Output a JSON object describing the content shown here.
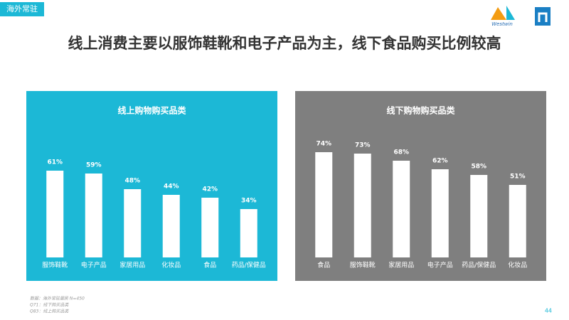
{
  "header": {
    "tag": "海外常驻",
    "brand": "Westwin"
  },
  "title": "线上消费主要以服饰鞋靴和电子产品为主，线下食品购买比例较高",
  "chart_data": [
    {
      "type": "bar",
      "title": "线上购物购买品类",
      "color": "#ffffff",
      "background": "#1cb8d6",
      "categories": [
        "服饰鞋靴",
        "电子产品",
        "家居用品",
        "化妆品",
        "食品",
        "药品/保健品"
      ],
      "values": [
        61,
        59,
        48,
        44,
        42,
        34
      ],
      "value_labels": [
        "61%",
        "59%",
        "48%",
        "44%",
        "42%",
        "34%"
      ]
    },
    {
      "type": "bar",
      "title": "线下购物购买品类",
      "color": "#ffffff",
      "background": "#7f7f7f",
      "categories": [
        "食品",
        "服饰鞋靴",
        "家居用品",
        "电子产品",
        "药品/保健品",
        "化妆品"
      ],
      "values": [
        74,
        73,
        68,
        62,
        58,
        51
      ],
      "value_labels": [
        "74%",
        "73%",
        "68%",
        "62%",
        "58%",
        "51%"
      ]
    }
  ],
  "notes": [
    "数据：海外常驻居民 N=450",
    "Q71：线下购买品类",
    "Q83：线上购买品类"
  ],
  "page_number": "44"
}
